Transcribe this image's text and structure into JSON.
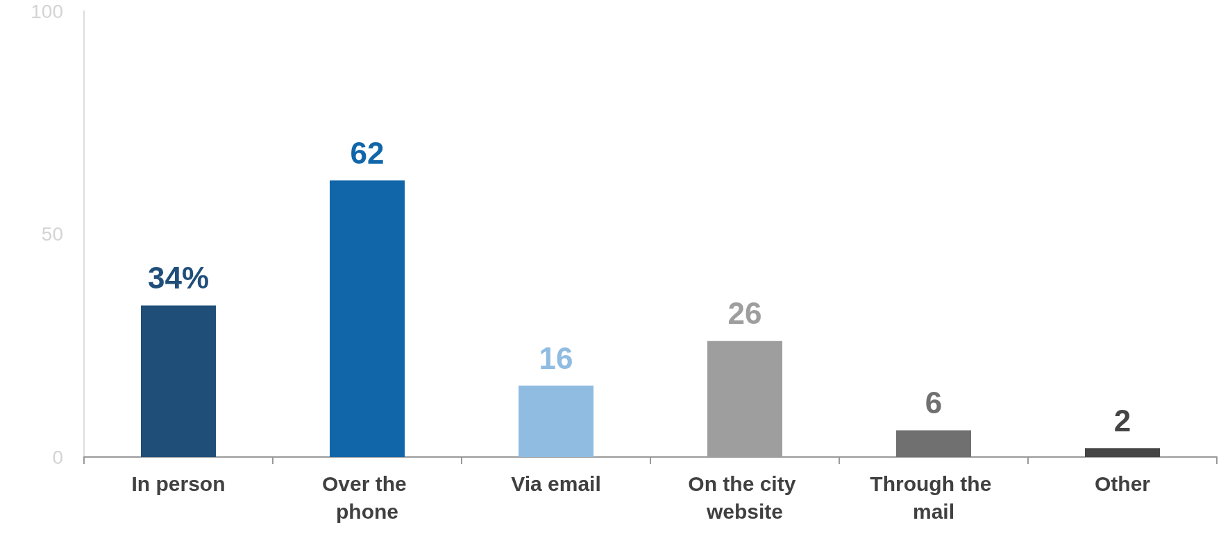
{
  "chart_data": {
    "type": "bar",
    "categories": [
      "In person",
      "Over the phone",
      "Via email",
      "On the city website",
      "Through the mail",
      "Other"
    ],
    "values": [
      34,
      62,
      16,
      26,
      6,
      2
    ],
    "value_labels": [
      "34%",
      "62",
      "16",
      "26",
      "6",
      "2"
    ],
    "colors": [
      "#1f4e79",
      "#1166aa",
      "#8fbce0",
      "#9d9e9d",
      "#6f706f",
      "#444544"
    ],
    "ylim": [
      0,
      100
    ],
    "yticks": [
      0,
      50,
      100
    ],
    "grid": false
  }
}
